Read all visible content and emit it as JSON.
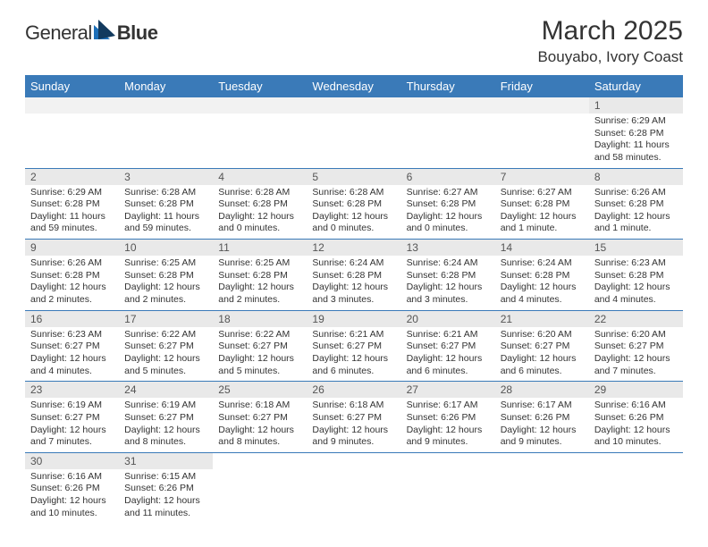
{
  "logo": {
    "textA": "General",
    "textB": "Blue"
  },
  "title": "March 2025",
  "location": "Bouyabo, Ivory Coast",
  "colors": {
    "header_bg": "#3a7ab8",
    "header_text": "#ffffff",
    "daynum_bg": "#e9e9e9",
    "row_border": "#3a7ab8",
    "logo_blue": "#1d6fb8",
    "logo_navy": "#123a5e"
  },
  "weekdays": [
    "Sunday",
    "Monday",
    "Tuesday",
    "Wednesday",
    "Thursday",
    "Friday",
    "Saturday"
  ],
  "weeks": [
    [
      null,
      null,
      null,
      null,
      null,
      null,
      {
        "d": "1",
        "sr": "Sunrise: 6:29 AM",
        "ss": "Sunset: 6:28 PM",
        "dl": "Daylight: 11 hours and 58 minutes."
      }
    ],
    [
      {
        "d": "2",
        "sr": "Sunrise: 6:29 AM",
        "ss": "Sunset: 6:28 PM",
        "dl": "Daylight: 11 hours and 59 minutes."
      },
      {
        "d": "3",
        "sr": "Sunrise: 6:28 AM",
        "ss": "Sunset: 6:28 PM",
        "dl": "Daylight: 11 hours and 59 minutes."
      },
      {
        "d": "4",
        "sr": "Sunrise: 6:28 AM",
        "ss": "Sunset: 6:28 PM",
        "dl": "Daylight: 12 hours and 0 minutes."
      },
      {
        "d": "5",
        "sr": "Sunrise: 6:28 AM",
        "ss": "Sunset: 6:28 PM",
        "dl": "Daylight: 12 hours and 0 minutes."
      },
      {
        "d": "6",
        "sr": "Sunrise: 6:27 AM",
        "ss": "Sunset: 6:28 PM",
        "dl": "Daylight: 12 hours and 0 minutes."
      },
      {
        "d": "7",
        "sr": "Sunrise: 6:27 AM",
        "ss": "Sunset: 6:28 PM",
        "dl": "Daylight: 12 hours and 1 minute."
      },
      {
        "d": "8",
        "sr": "Sunrise: 6:26 AM",
        "ss": "Sunset: 6:28 PM",
        "dl": "Daylight: 12 hours and 1 minute."
      }
    ],
    [
      {
        "d": "9",
        "sr": "Sunrise: 6:26 AM",
        "ss": "Sunset: 6:28 PM",
        "dl": "Daylight: 12 hours and 2 minutes."
      },
      {
        "d": "10",
        "sr": "Sunrise: 6:25 AM",
        "ss": "Sunset: 6:28 PM",
        "dl": "Daylight: 12 hours and 2 minutes."
      },
      {
        "d": "11",
        "sr": "Sunrise: 6:25 AM",
        "ss": "Sunset: 6:28 PM",
        "dl": "Daylight: 12 hours and 2 minutes."
      },
      {
        "d": "12",
        "sr": "Sunrise: 6:24 AM",
        "ss": "Sunset: 6:28 PM",
        "dl": "Daylight: 12 hours and 3 minutes."
      },
      {
        "d": "13",
        "sr": "Sunrise: 6:24 AM",
        "ss": "Sunset: 6:28 PM",
        "dl": "Daylight: 12 hours and 3 minutes."
      },
      {
        "d": "14",
        "sr": "Sunrise: 6:24 AM",
        "ss": "Sunset: 6:28 PM",
        "dl": "Daylight: 12 hours and 4 minutes."
      },
      {
        "d": "15",
        "sr": "Sunrise: 6:23 AM",
        "ss": "Sunset: 6:28 PM",
        "dl": "Daylight: 12 hours and 4 minutes."
      }
    ],
    [
      {
        "d": "16",
        "sr": "Sunrise: 6:23 AM",
        "ss": "Sunset: 6:27 PM",
        "dl": "Daylight: 12 hours and 4 minutes."
      },
      {
        "d": "17",
        "sr": "Sunrise: 6:22 AM",
        "ss": "Sunset: 6:27 PM",
        "dl": "Daylight: 12 hours and 5 minutes."
      },
      {
        "d": "18",
        "sr": "Sunrise: 6:22 AM",
        "ss": "Sunset: 6:27 PM",
        "dl": "Daylight: 12 hours and 5 minutes."
      },
      {
        "d": "19",
        "sr": "Sunrise: 6:21 AM",
        "ss": "Sunset: 6:27 PM",
        "dl": "Daylight: 12 hours and 6 minutes."
      },
      {
        "d": "20",
        "sr": "Sunrise: 6:21 AM",
        "ss": "Sunset: 6:27 PM",
        "dl": "Daylight: 12 hours and 6 minutes."
      },
      {
        "d": "21",
        "sr": "Sunrise: 6:20 AM",
        "ss": "Sunset: 6:27 PM",
        "dl": "Daylight: 12 hours and 6 minutes."
      },
      {
        "d": "22",
        "sr": "Sunrise: 6:20 AM",
        "ss": "Sunset: 6:27 PM",
        "dl": "Daylight: 12 hours and 7 minutes."
      }
    ],
    [
      {
        "d": "23",
        "sr": "Sunrise: 6:19 AM",
        "ss": "Sunset: 6:27 PM",
        "dl": "Daylight: 12 hours and 7 minutes."
      },
      {
        "d": "24",
        "sr": "Sunrise: 6:19 AM",
        "ss": "Sunset: 6:27 PM",
        "dl": "Daylight: 12 hours and 8 minutes."
      },
      {
        "d": "25",
        "sr": "Sunrise: 6:18 AM",
        "ss": "Sunset: 6:27 PM",
        "dl": "Daylight: 12 hours and 8 minutes."
      },
      {
        "d": "26",
        "sr": "Sunrise: 6:18 AM",
        "ss": "Sunset: 6:27 PM",
        "dl": "Daylight: 12 hours and 9 minutes."
      },
      {
        "d": "27",
        "sr": "Sunrise: 6:17 AM",
        "ss": "Sunset: 6:26 PM",
        "dl": "Daylight: 12 hours and 9 minutes."
      },
      {
        "d": "28",
        "sr": "Sunrise: 6:17 AM",
        "ss": "Sunset: 6:26 PM",
        "dl": "Daylight: 12 hours and 9 minutes."
      },
      {
        "d": "29",
        "sr": "Sunrise: 6:16 AM",
        "ss": "Sunset: 6:26 PM",
        "dl": "Daylight: 12 hours and 10 minutes."
      }
    ],
    [
      {
        "d": "30",
        "sr": "Sunrise: 6:16 AM",
        "ss": "Sunset: 6:26 PM",
        "dl": "Daylight: 12 hours and 10 minutes."
      },
      {
        "d": "31",
        "sr": "Sunrise: 6:15 AM",
        "ss": "Sunset: 6:26 PM",
        "dl": "Daylight: 12 hours and 11 minutes."
      },
      null,
      null,
      null,
      null,
      null
    ]
  ]
}
